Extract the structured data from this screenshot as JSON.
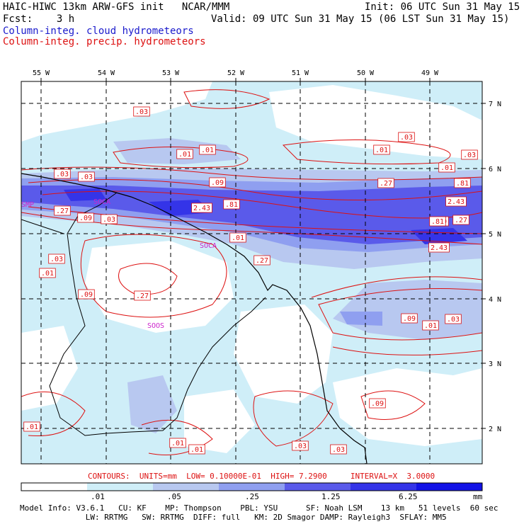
{
  "header": {
    "model_line": "HAIC-HIWC 13km ARW-GFS init   NCAR/MMM",
    "init_line": "Init: 06 UTC Sun 31 May 15",
    "fcst_line": "Fcst:    3 h",
    "valid_line": "Valid: 09 UTC Sun 31 May 15 (06 LST Sun 31 May 15)",
    "cloud_label": "Column-integ. cloud hydrometeors",
    "precip_label": "Column-integ. precip. hydrometeors"
  },
  "map": {
    "lon_labels": [
      "55 W",
      "54 W",
      "53 W",
      "52 W",
      "51 W",
      "50 W",
      "49 W"
    ],
    "lat_labels": [
      "7 N",
      "6 N",
      "5 N",
      "4 N",
      "3 N",
      "2 N"
    ],
    "stations": [
      "SOCA",
      "SOOS",
      "SMP",
      "SOCA"
    ],
    "contour_values": [
      ".03",
      ".01",
      ".01",
      ".03",
      ".01",
      ".03",
      ".01",
      ".03",
      ".03",
      ".09",
      ".27",
      ".81",
      ".27",
      ".81",
      "2.43",
      ".09",
      ".03",
      ".27",
      ".09",
      "2.43",
      ".01",
      ".27",
      ".81",
      ".27",
      "2.43",
      ".03",
      ".01",
      ".09",
      ".27",
      ".09",
      ".01",
      ".03",
      ".09",
      ".01",
      ".01",
      ".03",
      ".01",
      ".03"
    ]
  },
  "contours_info": "CONTOURS:  UNITS=mm  LOW= 0.10000E-01  HIGH= 7.2900     INTERVAL=X  3.0000",
  "colorbar": {
    "colors": [
      "#ffffff",
      "#cfeef8",
      "#b8c8f0",
      "#8f9ff0",
      "#5a5aea",
      "#3434e8",
      "#1212e6"
    ],
    "labels": [
      ".01",
      ".05",
      ".25",
      "1.25",
      "6.25"
    ],
    "unit": "mm"
  },
  "footer": {
    "line1": "Model Info: V3.6.1   CU: KF    MP: Thompson    PBL: YSU      SF: Noah LSM    13 km   51 levels  60 sec",
    "line2": "              LW: RRTMG   SW: RRTMG  DIFF: full   KM: 2D Smagor DAMP: Rayleigh3  SFLAY: MM5"
  },
  "colors": {
    "cloud_text": "#1a1acc",
    "precip_text": "#dd1111",
    "contour": "#dd1111",
    "coast": "#000000"
  }
}
